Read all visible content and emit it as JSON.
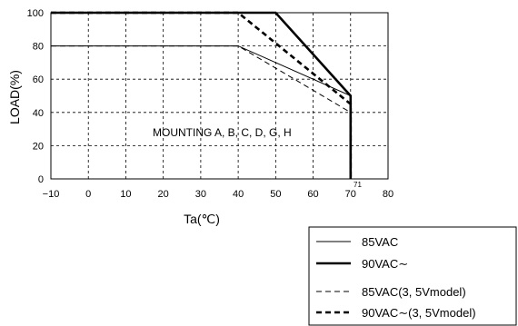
{
  "chart_data": {
    "type": "line",
    "title": "",
    "xlabel": "Ta(℃)",
    "ylabel": "LOAD(%)",
    "xlim": [
      -10,
      80
    ],
    "ylim": [
      0,
      100
    ],
    "x_ticks": [
      "−10",
      "0",
      "10",
      "20",
      "30",
      "40",
      "50",
      "60",
      "70",
      "80"
    ],
    "y_ticks": [
      "0",
      "20",
      "40",
      "60",
      "80",
      "100"
    ],
    "grid": true,
    "annotation": "MOUNTING A, B, C, D, G, H",
    "extra_tick_label": "71",
    "legend_position": "bottom-right, outside plot",
    "series": [
      {
        "name": "85VAC",
        "style": "thin-solid",
        "x": [
          -10,
          40,
          70,
          70
        ],
        "y": [
          80,
          80,
          50,
          0
        ]
      },
      {
        "name": "90VAC∼",
        "style": "thick-solid",
        "x": [
          -10,
          50,
          70,
          70
        ],
        "y": [
          100,
          100,
          50,
          0
        ]
      },
      {
        "name": "85VAC(3, 5Vmodel)",
        "style": "thin-dashed",
        "x": [
          -10,
          40,
          70,
          70
        ],
        "y": [
          80,
          80,
          40,
          0
        ]
      },
      {
        "name": "90VAC∼(3, 5Vmodel)",
        "style": "thick-dashed",
        "x": [
          -10,
          40,
          70,
          70
        ],
        "y": [
          100,
          100,
          45,
          0
        ]
      }
    ]
  }
}
